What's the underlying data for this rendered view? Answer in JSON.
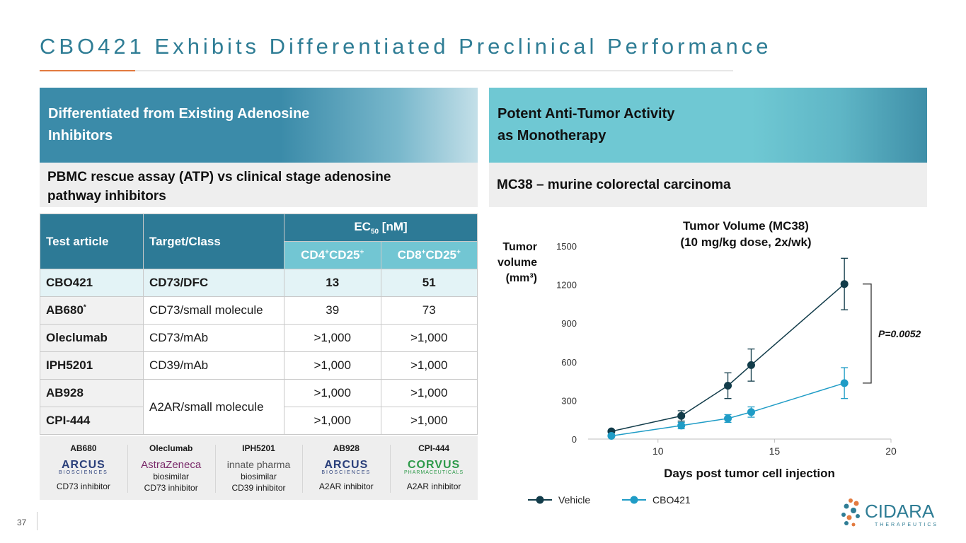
{
  "title": "CBO421 Exhibits Differentiated Preclinical Performance",
  "left_panel": {
    "banner": "Differentiated from Existing Adenosine Inhibitors",
    "banner_line1": "Differentiated from Existing Adenosine",
    "banner_line2": "Inhibitors",
    "subtitle_line1": "PBMC rescue assay (ATP) vs clinical stage adenosine",
    "subtitle_line2": "pathway inhibitors"
  },
  "right_panel": {
    "banner_line1": "Potent Anti-Tumor Activity",
    "banner_line2": "as Monotherapy",
    "subtitle": "MC38 – murine colorectal carcinoma"
  },
  "table": {
    "col_test": "Test article",
    "col_target": "Target/Class",
    "col_ec50": "EC",
    "col_ec50_sub": "50",
    "col_ec50_unit": " [nM]",
    "col_cd4": "CD4",
    "col_cd8": "CD8",
    "col_cd25": "CD25",
    "sup_plus": "+",
    "rows": [
      {
        "name": "CBO421",
        "target": "CD73/DFC",
        "cd4": "13",
        "cd8": "51"
      },
      {
        "name": "AB680",
        "target": "CD73/small molecule",
        "cd4": "39",
        "cd8": "73"
      },
      {
        "name": "Oleclumab",
        "target": "CD73/mAb",
        "cd4": ">1,000",
        "cd8": ">1,000"
      },
      {
        "name": "IPH5201",
        "target": "CD39/mAb",
        "cd4": ">1,000",
        "cd8": ">1,000"
      },
      {
        "name": "AB928",
        "target": "A2AR/small molecule",
        "cd4": ">1,000",
        "cd8": ">1,000"
      },
      {
        "name": "CPI-444",
        "target": "",
        "cd4": ">1,000",
        "cd8": ">1,000"
      }
    ],
    "ab680_mark": "*"
  },
  "logos": [
    {
      "name": "AB680",
      "mark": "ARCUS",
      "sub": "BIOSCIENCES",
      "note": "",
      "cap": "CD73 inhibitor",
      "color": "#2a3f7a"
    },
    {
      "name": "Oleclumab",
      "mark": "AstraZeneca",
      "sub": "",
      "note": "biosimilar",
      "cap": "CD73 inhibitor",
      "color": "#7a2a6a"
    },
    {
      "name": "IPH5201",
      "mark": "innate pharma",
      "sub": "",
      "note": "biosimilar",
      "cap": "CD39 inhibitor",
      "color": "#555555"
    },
    {
      "name": "AB928",
      "mark": "ARCUS",
      "sub": "BIOSCIENCES",
      "note": "",
      "cap": "A2AR inhibitor",
      "color": "#2a3f7a"
    },
    {
      "name": "CPI-444",
      "mark": "CORVUS",
      "sub": "PHARMACEUTICALS",
      "note": "",
      "cap": "A2AR inhibitor",
      "color": "#2e9a4a"
    }
  ],
  "chart_data": {
    "type": "line",
    "title_line1": "Tumor Volume (MC38)",
    "title_line2": "(10 mg/kg dose, 2x/wk)",
    "ylabel_line1": "Tumor",
    "ylabel_line2": "volume",
    "ylabel_line3": "(mm³)",
    "xlabel": "Days post tumor cell injection",
    "xlim": [
      7,
      20
    ],
    "ylim": [
      0,
      1500
    ],
    "xticks": [
      10,
      15,
      20
    ],
    "yticks": [
      0,
      300,
      600,
      900,
      1200,
      1500
    ],
    "series": [
      {
        "name": "Vehicle",
        "color": "#123c4a",
        "x": [
          8,
          11,
          13,
          14,
          18
        ],
        "y": [
          60,
          180,
          415,
          575,
          1205
        ],
        "err": [
          10,
          40,
          100,
          125,
          200
        ]
      },
      {
        "name": "CBO421",
        "color": "#1f9cc6",
        "x": [
          8,
          11,
          13,
          14,
          18
        ],
        "y": [
          25,
          105,
          160,
          210,
          435
        ],
        "err": [
          8,
          25,
          30,
          40,
          120
        ]
      }
    ],
    "annotation": "P=0.0052"
  },
  "footer": {
    "page": "37",
    "brand": "CIDARA",
    "brand_sub": "THERAPEUTICS"
  }
}
